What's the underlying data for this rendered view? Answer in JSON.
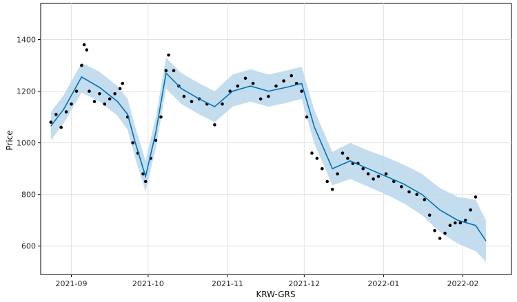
{
  "chart_data": {
    "type": "scatter",
    "title": "",
    "xlabel": "KRW-GRS",
    "ylabel": "Price",
    "grid": true,
    "legend": "none",
    "x_ticks": [
      "2021-09",
      "2021-10",
      "2021-11",
      "2021-12",
      "2022-01",
      "2022-02"
    ],
    "y_ticks": [
      600,
      800,
      1000,
      1200,
      1400
    ],
    "x_range": [
      "2021-08-20",
      "2022-02-20"
    ],
    "ylim": [
      490,
      1540
    ],
    "colors": {
      "observed": "#000000",
      "forecast_line": "#0072B2",
      "interval_fill": "#b9d7ec"
    },
    "series": [
      {
        "kind": "observed",
        "points": [
          [
            "2021-08-24",
            1080
          ],
          [
            "2021-08-26",
            1110
          ],
          [
            "2021-08-28",
            1060
          ],
          [
            "2021-08-30",
            1120
          ],
          [
            "2021-09-01",
            1150
          ],
          [
            "2021-09-03",
            1200
          ],
          [
            "2021-09-05",
            1300
          ],
          [
            "2021-09-06",
            1380
          ],
          [
            "2021-09-07",
            1360
          ],
          [
            "2021-09-08",
            1200
          ],
          [
            "2021-09-10",
            1160
          ],
          [
            "2021-09-12",
            1190
          ],
          [
            "2021-09-14",
            1150
          ],
          [
            "2021-09-16",
            1170
          ],
          [
            "2021-09-18",
            1190
          ],
          [
            "2021-09-20",
            1210
          ],
          [
            "2021-09-21",
            1230
          ],
          [
            "2021-09-23",
            1100
          ],
          [
            "2021-09-25",
            1000
          ],
          [
            "2021-09-27",
            960
          ],
          [
            "2021-09-29",
            880
          ],
          [
            "2021-09-30",
            850
          ],
          [
            "2021-10-02",
            940
          ],
          [
            "2021-10-04",
            1010
          ],
          [
            "2021-10-06",
            1100
          ],
          [
            "2021-10-08",
            1280
          ],
          [
            "2021-10-09",
            1340
          ],
          [
            "2021-10-11",
            1280
          ],
          [
            "2021-10-13",
            1220
          ],
          [
            "2021-10-15",
            1180
          ],
          [
            "2021-10-18",
            1160
          ],
          [
            "2021-10-21",
            1170
          ],
          [
            "2021-10-24",
            1150
          ],
          [
            "2021-10-27",
            1070
          ],
          [
            "2021-10-30",
            1150
          ],
          [
            "2021-11-02",
            1200
          ],
          [
            "2021-11-05",
            1220
          ],
          [
            "2021-11-08",
            1250
          ],
          [
            "2021-11-11",
            1230
          ],
          [
            "2021-11-14",
            1170
          ],
          [
            "2021-11-17",
            1180
          ],
          [
            "2021-11-20",
            1220
          ],
          [
            "2021-11-23",
            1240
          ],
          [
            "2021-11-26",
            1260
          ],
          [
            "2021-11-28",
            1230
          ],
          [
            "2021-11-30",
            1200
          ],
          [
            "2021-12-02",
            1100
          ],
          [
            "2021-12-04",
            960
          ],
          [
            "2021-12-06",
            940
          ],
          [
            "2021-12-08",
            900
          ],
          [
            "2021-12-10",
            850
          ],
          [
            "2021-12-12",
            820
          ],
          [
            "2021-12-14",
            880
          ],
          [
            "2021-12-16",
            960
          ],
          [
            "2021-12-18",
            940
          ],
          [
            "2021-12-20",
            920
          ],
          [
            "2021-12-22",
            920
          ],
          [
            "2021-12-24",
            900
          ],
          [
            "2021-12-26",
            880
          ],
          [
            "2021-12-28",
            860
          ],
          [
            "2021-12-30",
            870
          ],
          [
            "2022-01-02",
            880
          ],
          [
            "2022-01-05",
            850
          ],
          [
            "2022-01-08",
            830
          ],
          [
            "2022-01-11",
            810
          ],
          [
            "2022-01-14",
            800
          ],
          [
            "2022-01-17",
            780
          ],
          [
            "2022-01-19",
            720
          ],
          [
            "2022-01-21",
            660
          ],
          [
            "2022-01-23",
            630
          ],
          [
            "2022-01-25",
            650
          ],
          [
            "2022-01-27",
            680
          ],
          [
            "2022-01-29",
            690
          ],
          [
            "2022-01-31",
            690
          ],
          [
            "2022-02-02",
            700
          ],
          [
            "2022-02-04",
            740
          ],
          [
            "2022-02-06",
            790
          ]
        ]
      },
      {
        "kind": "forecast",
        "points": [
          [
            "2021-08-24",
            1065,
            1010,
            1120
          ],
          [
            "2021-08-29",
            1130,
            1075,
            1185
          ],
          [
            "2021-09-05",
            1255,
            1195,
            1310
          ],
          [
            "2021-09-12",
            1215,
            1160,
            1275
          ],
          [
            "2021-09-19",
            1160,
            1105,
            1220
          ],
          [
            "2021-09-23",
            1110,
            1050,
            1170
          ],
          [
            "2021-09-26",
            1000,
            940,
            1060
          ],
          [
            "2021-09-30",
            870,
            810,
            930
          ],
          [
            "2021-10-04",
            1040,
            980,
            1100
          ],
          [
            "2021-10-08",
            1270,
            1210,
            1330
          ],
          [
            "2021-10-14",
            1210,
            1150,
            1270
          ],
          [
            "2021-10-21",
            1170,
            1110,
            1230
          ],
          [
            "2021-10-27",
            1140,
            1080,
            1200
          ],
          [
            "2021-11-03",
            1200,
            1140,
            1265
          ],
          [
            "2021-11-10",
            1220,
            1160,
            1285
          ],
          [
            "2021-11-17",
            1200,
            1140,
            1265
          ],
          [
            "2021-11-24",
            1215,
            1155,
            1280
          ],
          [
            "2021-11-30",
            1230,
            1170,
            1295
          ],
          [
            "2021-12-05",
            1060,
            995,
            1125
          ],
          [
            "2021-12-12",
            900,
            835,
            965
          ],
          [
            "2021-12-19",
            930,
            860,
            1000
          ],
          [
            "2021-12-26",
            900,
            830,
            970
          ],
          [
            "2022-01-02",
            870,
            800,
            945
          ],
          [
            "2022-01-09",
            840,
            765,
            915
          ],
          [
            "2022-01-16",
            800,
            720,
            880
          ],
          [
            "2022-01-23",
            740,
            655,
            825
          ],
          [
            "2022-01-30",
            700,
            610,
            790
          ],
          [
            "2022-02-06",
            680,
            580,
            780
          ],
          [
            "2022-02-10",
            620,
            540,
            700
          ]
        ]
      }
    ]
  }
}
